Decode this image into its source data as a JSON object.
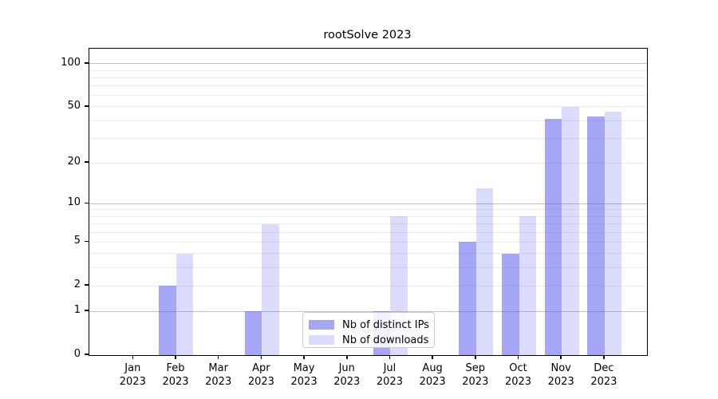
{
  "title": "rootSolve 2023",
  "colors": {
    "bar_base": "#5c5cf0",
    "bar_distinct_ips_fill": "rgba(92,92,240,0.55)",
    "bar_downloads_fill": "rgba(92,92,240,0.22)",
    "grid_major": "#c0c0c0",
    "grid_minor": "#ebebeb",
    "spine": "#000000",
    "text": "#000000",
    "legend_border": "#cccccc"
  },
  "legend": {
    "items": [
      {
        "label": "Nb of distinct IPs",
        "fill": "rgba(92,92,240,0.55)"
      },
      {
        "label": "Nb of downloads",
        "fill": "rgba(92,92,240,0.22)"
      }
    ]
  },
  "chart_data": {
    "type": "bar",
    "title": "rootSolve 2023",
    "categories": [
      "Jan",
      "Feb",
      "Mar",
      "Apr",
      "May",
      "Jun",
      "Jul",
      "Aug",
      "Sep",
      "Oct",
      "Nov",
      "Dec"
    ],
    "x_tick_year": "2023",
    "series": [
      {
        "name": "Nb of distinct IPs",
        "values": [
          0,
          2,
          0,
          1,
          0,
          0,
          1,
          0,
          5,
          4,
          41,
          43
        ]
      },
      {
        "name": "Nb of downloads",
        "values": [
          0,
          4,
          0,
          7,
          0,
          0,
          8,
          0,
          13,
          8,
          50,
          46
        ]
      }
    ],
    "xlabel": "",
    "ylabel": "",
    "y_scale": "log1p",
    "y_ticks": [
      0,
      1,
      2,
      5,
      10,
      20,
      50,
      100
    ],
    "y_gridlines_major": [
      1,
      10,
      100
    ],
    "y_gridlines_minor": [
      2,
      3,
      4,
      5,
      6,
      7,
      8,
      9,
      20,
      30,
      40,
      50,
      60,
      70,
      80,
      90
    ],
    "ylim": [
      0,
      127
    ],
    "grid": true,
    "legend_position": "bottom-center"
  }
}
